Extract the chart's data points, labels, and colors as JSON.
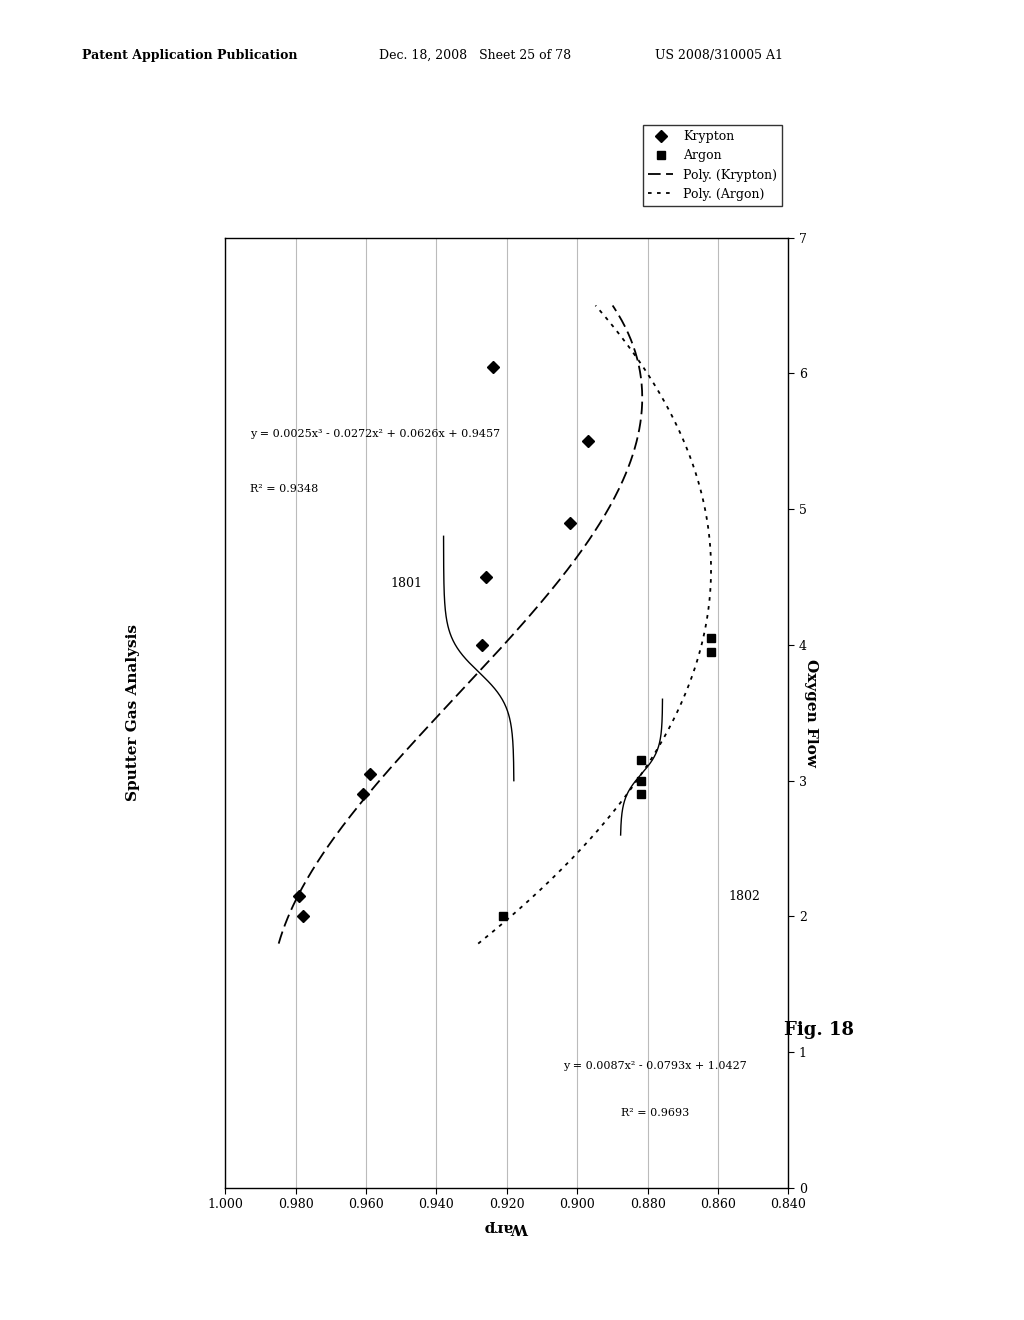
{
  "title": "Sputter Gas Analysis",
  "warp_label": "Warp",
  "oxygen_label": "Oxygen Flow",
  "fig_label": "Fig. 18",
  "pub_left": "Patent Application Publication",
  "pub_mid": "Dec. 18, 2008   Sheet 25 of 78",
  "pub_right": "US 2008/310005 A1",
  "o2_min": 0,
  "o2_max": 7,
  "warp_min": 0.84,
  "warp_max": 1.0,
  "o2_ticks": [
    0,
    1,
    2,
    3,
    4,
    5,
    6,
    7
  ],
  "warp_ticks": [
    0.84,
    0.86,
    0.88,
    0.9,
    0.92,
    0.94,
    0.96,
    0.98,
    1.0
  ],
  "krypton_o2": [
    2.0,
    2.15,
    2.9,
    3.05,
    4.0,
    4.5,
    4.9,
    5.5,
    6.05
  ],
  "krypton_warp": [
    0.978,
    0.979,
    0.961,
    0.959,
    0.927,
    0.926,
    0.902,
    0.897,
    0.924
  ],
  "argon_o2": [
    2.0,
    2.9,
    3.0,
    3.15,
    3.95,
    4.05
  ],
  "argon_warp": [
    0.921,
    0.882,
    0.882,
    0.882,
    0.862,
    0.862
  ],
  "krypton_poly_line1": "y = 0.0025x³ - 0.0272x² + 0.0626x + 0.9457",
  "krypton_poly_line2": "R² = 0.9348",
  "argon_poly_line1": "y = 0.0087x² - 0.0793x + 1.0427",
  "argon_poly_line2": "R² = 0.9693",
  "label_1801": "1801",
  "label_1802": "1802",
  "legend_entries": [
    "Krypton",
    "Argon",
    "Poly. (Krypton)",
    "Poly. (Argon)"
  ],
  "bg_color": "#ffffff"
}
